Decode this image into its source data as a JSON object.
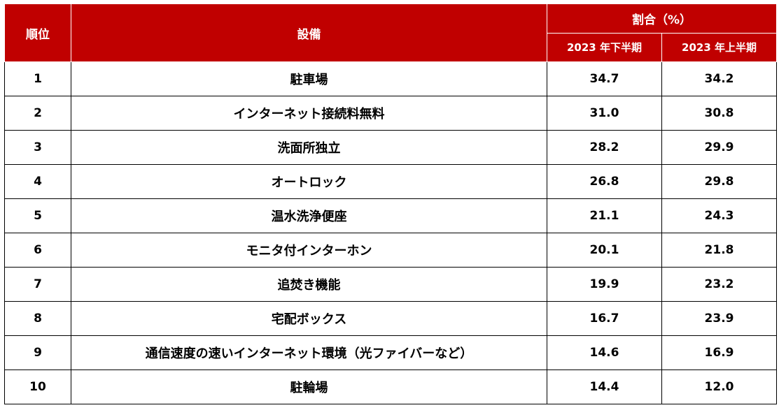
{
  "table": {
    "headers": {
      "rank": "順位",
      "equipment": "設備",
      "ratio_group": "割合（%）",
      "period_1": "2023 年下半期",
      "period_2": "2023 年上半期"
    },
    "rows": [
      {
        "rank": "1",
        "equipment": "駐車場",
        "v1": "34.7",
        "v2": "34.2"
      },
      {
        "rank": "2",
        "equipment": "インターネット接続料無料",
        "v1": "31.0",
        "v2": "30.8"
      },
      {
        "rank": "3",
        "equipment": "洗面所独立",
        "v1": "28.2",
        "v2": "29.9"
      },
      {
        "rank": "4",
        "equipment": "オートロック",
        "v1": "26.8",
        "v2": "29.8"
      },
      {
        "rank": "5",
        "equipment": "温水洗浄便座",
        "v1": "21.1",
        "v2": "24.3"
      },
      {
        "rank": "6",
        "equipment": "モニタ付インターホン",
        "v1": "20.1",
        "v2": "21.8"
      },
      {
        "rank": "7",
        "equipment": "追焚き機能",
        "v1": "19.9",
        "v2": "23.2"
      },
      {
        "rank": "8",
        "equipment": "宅配ボックス",
        "v1": "16.7",
        "v2": "23.9"
      },
      {
        "rank": "9",
        "equipment": "通信速度の速いインターネット環境（光ファイバーなど）",
        "v1": "14.6",
        "v2": "16.9"
      },
      {
        "rank": "10",
        "equipment": "駐輪場",
        "v1": "14.4",
        "v2": "12.0"
      }
    ]
  },
  "colors": {
    "header_bg": "#c00000",
    "header_text": "#ffffff",
    "border": "#000000"
  }
}
